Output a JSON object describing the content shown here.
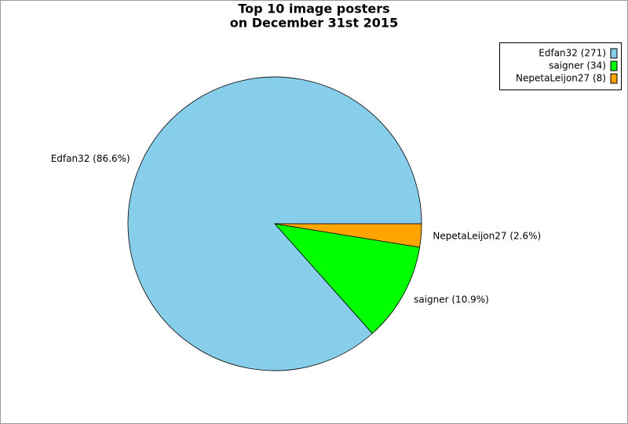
{
  "chart_data": {
    "type": "pie",
    "title": [
      "Top 10 image posters",
      "on December 31st 2015"
    ],
    "values": [
      271,
      34,
      8
    ],
    "slice_labels": [
      "Edfan32 (86.6%)",
      "saigner (10.9%)",
      "NepetaLeijon27 (2.6%)"
    ],
    "legend": [
      "Edfan32 (271)",
      "saigner (34)",
      "NepetaLeijon27 (8)"
    ],
    "colors": [
      "#87ceeb",
      "#00ff00",
      "#ffa500"
    ],
    "legend_position": "top-right"
  }
}
